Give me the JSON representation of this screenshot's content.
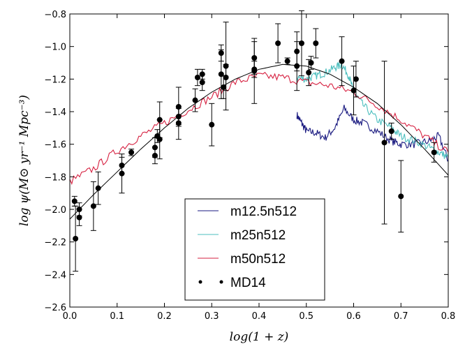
{
  "chart_data": {
    "type": "line",
    "title": "",
    "xlabel": "log(1 + z)",
    "ylabel": "log ψ(M⊙ yr⁻¹ Mpc⁻³)",
    "xlim": [
      0.0,
      0.8
    ],
    "ylim": [
      -2.6,
      -0.8
    ],
    "xticks": [
      "0.0",
      "0.1",
      "0.2",
      "0.3",
      "0.4",
      "0.5",
      "0.6",
      "0.7",
      "0.8"
    ],
    "yticks": [
      "−2.6",
      "−2.4",
      "−2.2",
      "−2.0",
      "−1.8",
      "−1.6",
      "−1.4",
      "−1.2",
      "−1.0",
      "−0.8"
    ],
    "legend_position": "bottom-center",
    "series": [
      {
        "name": "m12.5n512",
        "color": "#1a1a80",
        "x": [
          0.48,
          0.49,
          0.5,
          0.52,
          0.54,
          0.56,
          0.58,
          0.6,
          0.62,
          0.65,
          0.68,
          0.7,
          0.73,
          0.76,
          0.78,
          0.8
        ],
        "y": [
          -1.42,
          -1.47,
          -1.52,
          -1.53,
          -1.56,
          -1.5,
          -1.38,
          -1.45,
          -1.47,
          -1.52,
          -1.58,
          -1.6,
          -1.6,
          -1.58,
          -1.55,
          -1.7
        ]
      },
      {
        "name": "m25n512",
        "color": "#4dbfbf",
        "x": [
          0.48,
          0.5,
          0.52,
          0.54,
          0.56,
          0.575,
          0.59,
          0.6,
          0.62,
          0.65,
          0.68,
          0.7,
          0.73,
          0.76,
          0.78,
          0.8
        ],
        "y": [
          -1.19,
          -1.2,
          -1.18,
          -1.16,
          -1.13,
          -1.11,
          -1.18,
          -1.28,
          -1.36,
          -1.45,
          -1.5,
          -1.55,
          -1.58,
          -1.62,
          -1.65,
          -1.68
        ]
      },
      {
        "name": "m50n512",
        "color": "#d62040",
        "x": [
          0.0,
          0.05,
          0.1,
          0.15,
          0.2,
          0.25,
          0.3,
          0.35,
          0.4,
          0.45,
          0.5,
          0.55,
          0.6,
          0.65,
          0.7,
          0.75,
          0.8
        ],
        "y": [
          -1.83,
          -1.75,
          -1.64,
          -1.55,
          -1.47,
          -1.39,
          -1.31,
          -1.22,
          -1.18,
          -1.19,
          -1.22,
          -1.24,
          -1.28,
          -1.36,
          -1.45,
          -1.55,
          -1.65
        ]
      },
      {
        "name": "MD14",
        "type": "scatter",
        "color": "#000000",
        "points": [
          [
            0.01,
            -1.95,
            0.03
          ],
          [
            0.012,
            -2.18,
            0.2
          ],
          [
            0.02,
            -2.0,
            0.04
          ],
          [
            0.02,
            -2.05,
            0.05
          ],
          [
            0.05,
            -1.98,
            0.15
          ],
          [
            0.06,
            -1.87,
            0.1
          ],
          [
            0.11,
            -1.73,
            0.05
          ],
          [
            0.11,
            -1.78,
            0.12
          ],
          [
            0.13,
            -1.65,
            0.02
          ],
          [
            0.18,
            -1.62,
            0.06
          ],
          [
            0.18,
            -1.67,
            0.05
          ],
          [
            0.185,
            -1.55,
            0.04
          ],
          [
            0.19,
            -1.57,
            0.12
          ],
          [
            0.19,
            -1.45,
            0.11
          ],
          [
            0.23,
            -1.37,
            0.12
          ],
          [
            0.23,
            -1.43,
            0.05
          ],
          [
            0.23,
            -1.47,
            0.1
          ],
          [
            0.265,
            -1.33,
            0.07
          ],
          [
            0.27,
            -1.19,
            0.05
          ],
          [
            0.28,
            -1.17,
            0.03
          ],
          [
            0.28,
            -1.22,
            0.05
          ],
          [
            0.3,
            -1.48,
            0.13
          ],
          [
            0.32,
            -1.04,
            0.05
          ],
          [
            0.32,
            -1.17,
            0.15
          ],
          [
            0.325,
            -1.25,
            0.07
          ],
          [
            0.33,
            -1.12,
            0.27
          ],
          [
            0.33,
            -1.19,
            0.08
          ],
          [
            0.39,
            -1.07,
            0.1
          ],
          [
            0.39,
            -1.14,
            0.05
          ],
          [
            0.39,
            -1.15,
            0.2
          ],
          [
            0.44,
            -0.98,
            0.12
          ],
          [
            0.46,
            -1.09,
            0.02
          ],
          [
            0.48,
            -1.03,
            0.12
          ],
          [
            0.48,
            -1.12,
            0.15
          ],
          [
            0.49,
            -0.98,
            0.2
          ],
          [
            0.505,
            -1.16,
            0.08
          ],
          [
            0.51,
            -1.1,
            0.04
          ],
          [
            0.52,
            -0.98,
            0.09
          ],
          [
            0.575,
            -1.09,
            0.15
          ],
          [
            0.6,
            -1.27,
            0.15
          ],
          [
            0.605,
            -1.2,
            0.11
          ],
          [
            0.665,
            -1.59,
            0.5
          ],
          [
            0.68,
            -1.52,
            0.05
          ],
          [
            0.7,
            -1.92,
            0.22
          ],
          [
            0.77,
            -1.65,
            0.06
          ]
        ]
      },
      {
        "name": "MD14 fit",
        "color": "#000000",
        "x": [
          0.0,
          0.05,
          0.1,
          0.15,
          0.2,
          0.25,
          0.3,
          0.35,
          0.4,
          0.45,
          0.5,
          0.55,
          0.6,
          0.65,
          0.7,
          0.75,
          0.8
        ],
        "y": [
          -2.06,
          -1.91,
          -1.77,
          -1.63,
          -1.5,
          -1.38,
          -1.28,
          -1.2,
          -1.14,
          -1.11,
          -1.12,
          -1.17,
          -1.25,
          -1.35,
          -1.48,
          -1.63,
          -1.79
        ]
      }
    ]
  }
}
